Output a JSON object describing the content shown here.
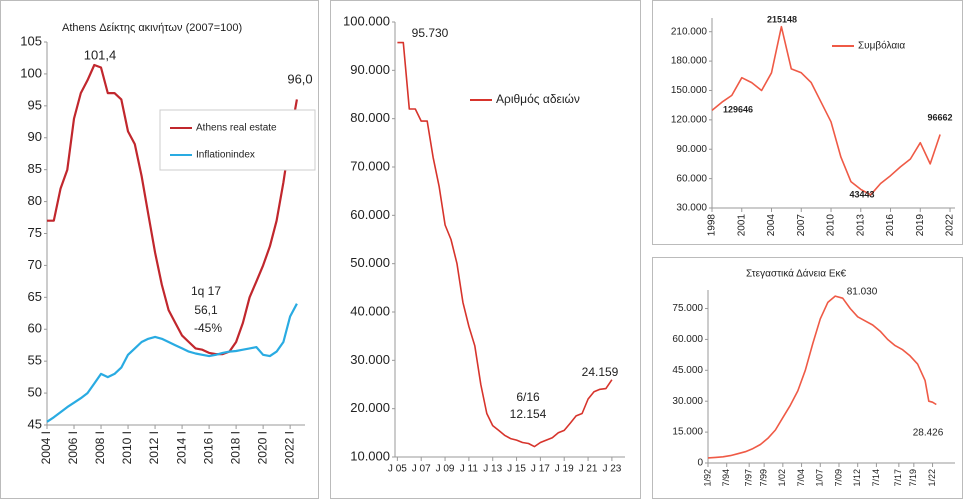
{
  "chart_data": [
    {
      "type": "line",
      "title": "Athens Δείκτης ακινήτων (2007=100)",
      "x": [
        2004,
        2004.5,
        2005,
        2005.5,
        2006,
        2006.5,
        2007,
        2007.5,
        2008,
        2008.5,
        2009,
        2009.5,
        2010,
        2010.5,
        2011,
        2011.5,
        2012,
        2012.5,
        2013,
        2013.5,
        2014,
        2014.5,
        2015,
        2015.5,
        2016,
        2016.5,
        2017,
        2017.5,
        2018,
        2018.5,
        2019,
        2019.5,
        2020,
        2020.5,
        2021,
        2021.5,
        2022,
        2022.5
      ],
      "series": [
        {
          "name": "Athens real estate",
          "color": "#c1272d",
          "values": [
            77,
            77,
            82,
            85,
            93,
            97,
            99,
            101.4,
            101,
            97,
            97,
            96,
            91,
            89,
            84,
            78,
            72,
            67,
            63,
            61,
            59,
            58,
            57,
            56.8,
            56.3,
            56.1,
            56.1,
            56.5,
            58,
            61,
            65,
            67.5,
            70,
            73,
            77,
            83,
            90,
            96
          ]
        },
        {
          "name": "Inflationindex",
          "color": "#29abe2",
          "values": [
            45.5,
            46.2,
            47,
            47.8,
            48.5,
            49.2,
            50,
            51.5,
            53,
            52.5,
            53,
            54,
            56,
            57,
            58,
            58.5,
            58.8,
            58.5,
            58,
            57.5,
            57,
            56.5,
            56.2,
            56,
            55.8,
            56,
            56.3,
            56.5,
            56.6,
            56.8,
            57,
            57.2,
            56,
            55.8,
            56.5,
            58,
            62,
            64
          ]
        }
      ],
      "xlim": [
        2004,
        2023.1
      ],
      "ylim": [
        45,
        105
      ],
      "xticks": [
        {
          "value": 2004,
          "label": "2004 I"
        },
        {
          "value": 2006,
          "label": "2006 I"
        },
        {
          "value": 2008,
          "label": "2008 I"
        },
        {
          "value": 2010,
          "label": "2010 I"
        },
        {
          "value": 2012,
          "label": "2012 I"
        },
        {
          "value": 2014,
          "label": "2014 I"
        },
        {
          "value": 2016,
          "label": "2016 I"
        },
        {
          "value": 2018,
          "label": "2018 I"
        },
        {
          "value": 2020,
          "label": "2020 I"
        },
        {
          "value": 2022,
          "label": "2022 I"
        }
      ],
      "yticks": [
        45,
        50,
        55,
        60,
        65,
        70,
        75,
        80,
        85,
        90,
        95,
        100,
        105
      ],
      "annotations": [
        "101,4",
        "96,0",
        "1q 17",
        "56,1",
        "-45%"
      ]
    },
    {
      "type": "line",
      "x": [
        2005,
        2005.5,
        2006,
        2006.5,
        2007,
        2007.5,
        2008,
        2008.5,
        2009,
        2009.5,
        2010,
        2010.5,
        2011,
        2011.5,
        2012,
        2012.5,
        2013,
        2013.5,
        2014,
        2014.5,
        2015,
        2015.5,
        2016,
        2016.5,
        2017,
        2017.5,
        2018,
        2018.5,
        2019,
        2019.5,
        2020,
        2020.5,
        2021,
        2021.5,
        2022,
        2022.5,
        2023
      ],
      "series": [
        {
          "name": "Αριθμός αδειών",
          "color": "#d7342c",
          "values": [
            95730,
            95730,
            82000,
            82000,
            79500,
            79500,
            72000,
            66000,
            58000,
            55000,
            50000,
            42000,
            37000,
            33000,
            25000,
            19000,
            16500,
            15500,
            14500,
            13800,
            13500,
            13000,
            12800,
            12154,
            13000,
            13500,
            14000,
            15000,
            15500,
            17000,
            18500,
            19000,
            22000,
            23500,
            24000,
            24159,
            26000
          ]
        }
      ],
      "xlim": [
        2004.8,
        2024.1
      ],
      "ylim": [
        10000,
        100000
      ],
      "xticks": [
        {
          "value": 2005,
          "label": "J 05"
        },
        {
          "value": 2007,
          "label": "J 07"
        },
        {
          "value": 2009,
          "label": "J 09"
        },
        {
          "value": 2011,
          "label": "J 11"
        },
        {
          "value": 2013,
          "label": "J 13"
        },
        {
          "value": 2015,
          "label": "J 15"
        },
        {
          "value": 2017,
          "label": "J 17"
        },
        {
          "value": 2019,
          "label": "J 19"
        },
        {
          "value": 2021,
          "label": "J 21"
        },
        {
          "value": 2023,
          "label": "J 23"
        }
      ],
      "yticks": [
        {
          "value": 10000,
          "label": "10.000"
        },
        {
          "value": 20000,
          "label": "20.000"
        },
        {
          "value": 30000,
          "label": "30.000"
        },
        {
          "value": 40000,
          "label": "40.000"
        },
        {
          "value": 50000,
          "label": "50.000"
        },
        {
          "value": 60000,
          "label": "60.000"
        },
        {
          "value": 70000,
          "label": "70.000"
        },
        {
          "value": 80000,
          "label": "80.000"
        },
        {
          "value": 90000,
          "label": "90.000"
        },
        {
          "value": 100000,
          "label": "100.000"
        }
      ],
      "annotations": [
        "95.730",
        "6/16",
        "12.154",
        "24.159"
      ]
    },
    {
      "type": "line",
      "x": [
        1998,
        1999,
        2000,
        2001,
        2002,
        2003,
        2004,
        2005,
        2006,
        2007,
        2008,
        2009,
        2010,
        2011,
        2012,
        2013,
        2014,
        2015,
        2016,
        2017,
        2018,
        2019,
        2020,
        2021
      ],
      "series": [
        {
          "name": "Συμβόλαια",
          "color": "#ef5a46",
          "values": [
            129646,
            138000,
            145000,
            163000,
            158000,
            150000,
            168000,
            215148,
            172000,
            168000,
            158000,
            138000,
            118000,
            82000,
            57000,
            49000,
            43443,
            55000,
            63000,
            72000,
            80000,
            96662,
            75000,
            105000
          ]
        }
      ],
      "xlim": [
        1998,
        2022.5
      ],
      "ylim": [
        30000,
        224000
      ],
      "xticks": [
        1998,
        2001,
        2004,
        2007,
        2010,
        2013,
        2016,
        2019,
        2022
      ],
      "yticks": [
        {
          "value": 30000,
          "label": "30.000"
        },
        {
          "value": 60000,
          "label": "60.000"
        },
        {
          "value": 90000,
          "label": "90.000"
        },
        {
          "value": 120000,
          "label": "120.000"
        },
        {
          "value": 150000,
          "label": "150.000"
        },
        {
          "value": 180000,
          "label": "180.000"
        },
        {
          "value": 210000,
          "label": "210.000"
        }
      ]
    },
    {
      "type": "line",
      "title": "Στεγαστικά Δάνεια Εκ€",
      "x": [
        1992,
        1993,
        1994,
        1995,
        1996,
        1997,
        1998,
        1999,
        2000,
        2001,
        2002,
        2003,
        2004,
        2005,
        2006,
        2007,
        2008,
        2009,
        2010,
        2011,
        2012,
        2013,
        2014,
        2015,
        2016,
        2017,
        2018,
        2019,
        2020,
        2021,
        2021.5,
        2022,
        2022.5
      ],
      "series": [
        {
          "color": "#ef5a46",
          "values": [
            2500,
            2700,
            3000,
            3600,
            4500,
            5500,
            7000,
            9000,
            12000,
            16000,
            22000,
            28000,
            35000,
            45000,
            58000,
            70000,
            78000,
            81030,
            80000,
            75000,
            71000,
            69000,
            67000,
            64000,
            60000,
            57000,
            55000,
            52000,
            48000,
            40000,
            30000,
            29500,
            28426
          ]
        }
      ],
      "xlim": [
        1992,
        2025
      ],
      "ylim": [
        0,
        84000
      ],
      "xticks": [
        {
          "value": 1992,
          "label": "1/92"
        },
        {
          "value": 1994.5,
          "label": "7/94"
        },
        {
          "value": 1997.5,
          "label": "7/97"
        },
        {
          "value": 1999.5,
          "label": "7/99"
        },
        {
          "value": 2002,
          "label": "1/02"
        },
        {
          "value": 2004.5,
          "label": "7/04"
        },
        {
          "value": 2007,
          "label": "1/07"
        },
        {
          "value": 2009.5,
          "label": "7/09"
        },
        {
          "value": 2012,
          "label": "1/12"
        },
        {
          "value": 2014.5,
          "label": "7/14"
        },
        {
          "value": 2017.5,
          "label": "7/17"
        },
        {
          "value": 2019.5,
          "label": "7/19"
        },
        {
          "value": 2022,
          "label": "1/22"
        }
      ],
      "yticks": [
        0,
        {
          "value": 15000,
          "label": "15.000"
        },
        {
          "value": 30000,
          "label": "30.000"
        },
        {
          "value": 45000,
          "label": "45.000"
        },
        {
          "value": 60000,
          "label": "60.000"
        },
        {
          "value": 75000,
          "label": "75.000"
        }
      ],
      "annotations": [
        "81.030",
        "28.426"
      ]
    }
  ]
}
